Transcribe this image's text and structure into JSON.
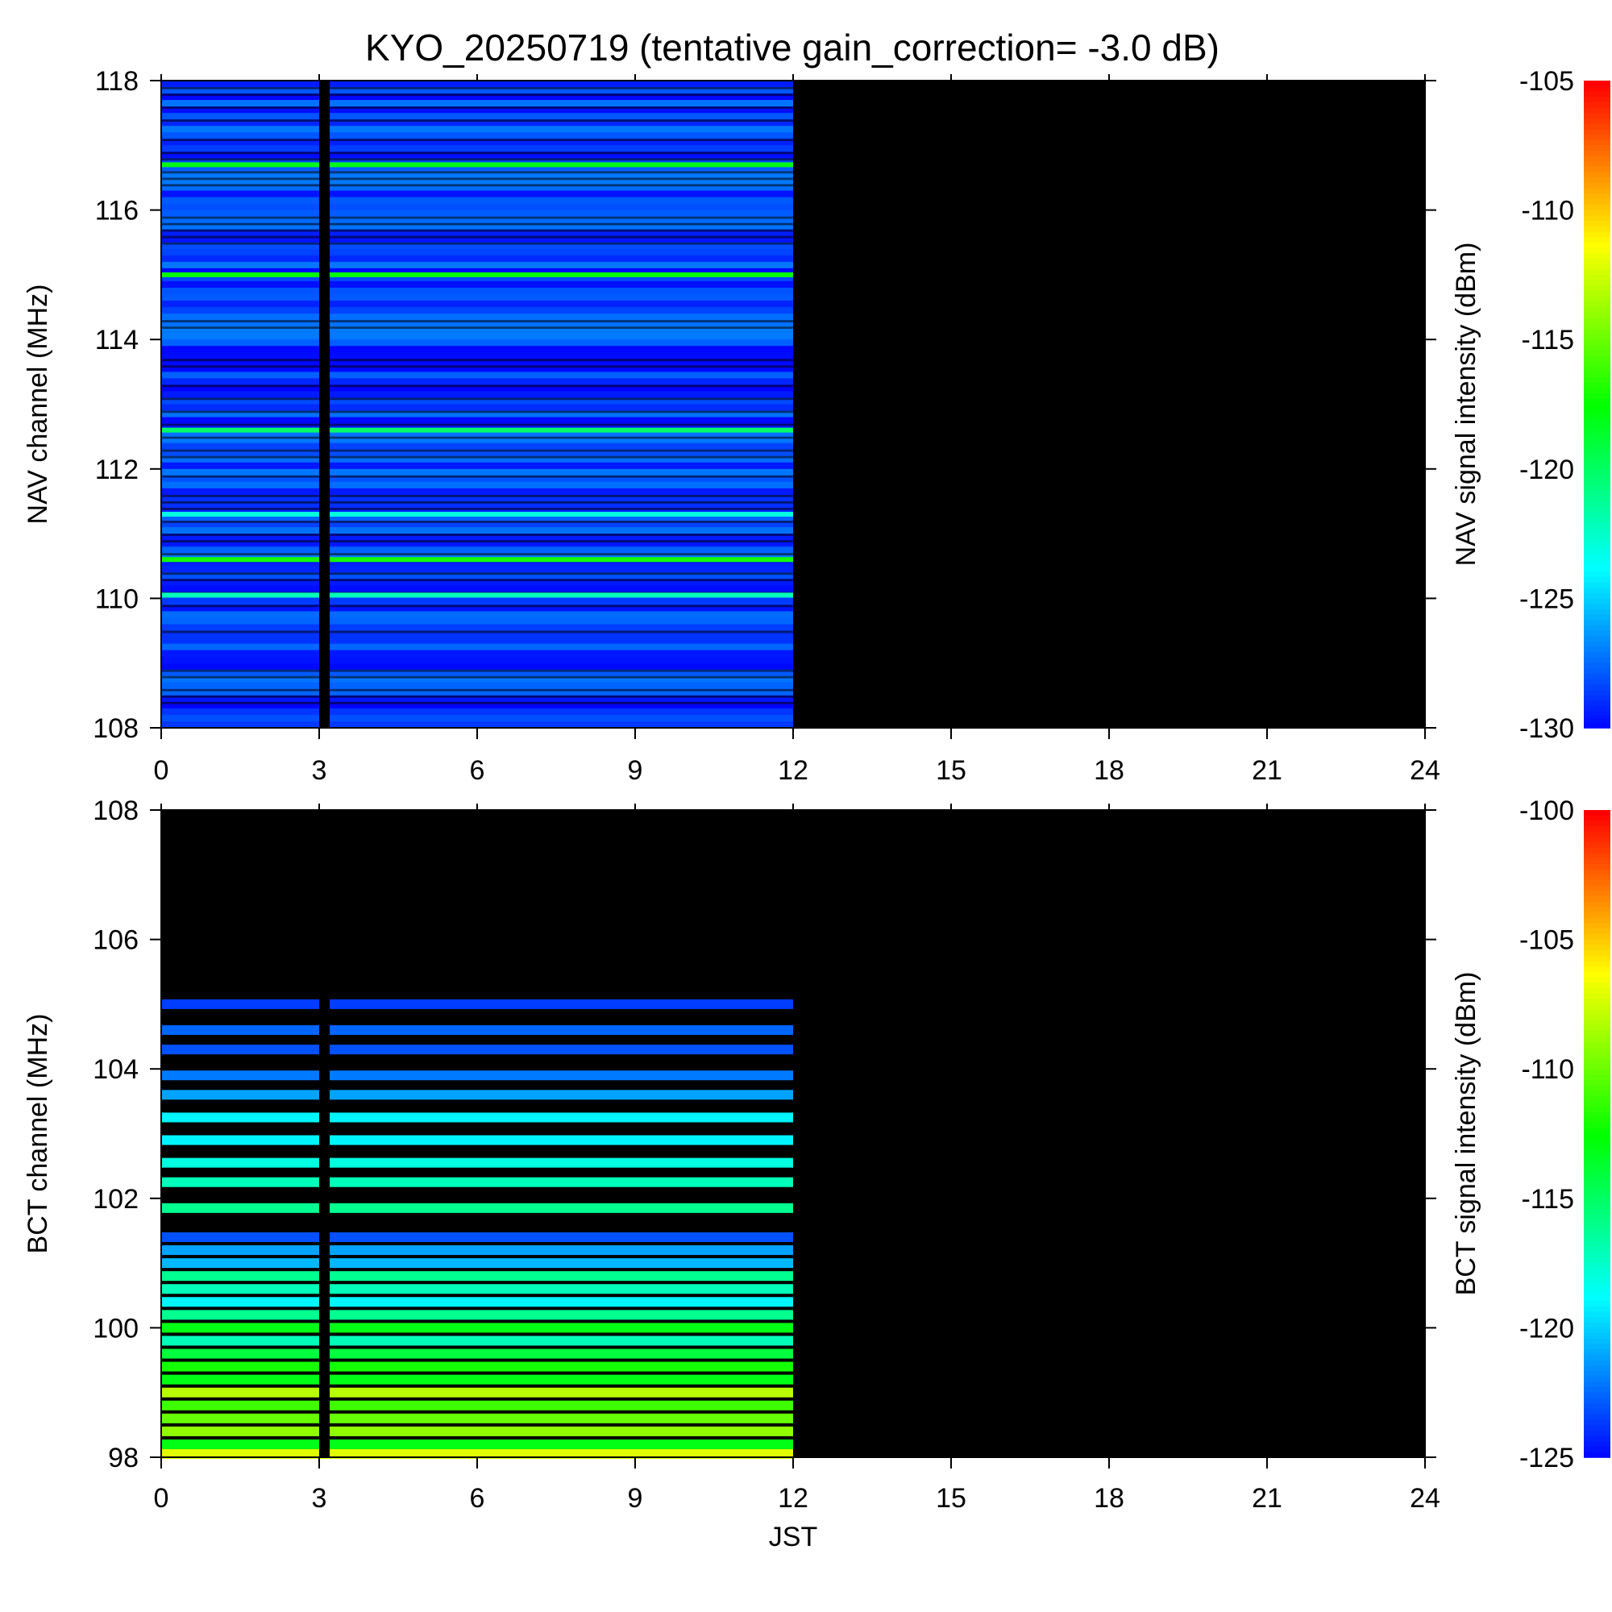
{
  "figure": {
    "title": "KYO_20250719 (tentative gain_correction= -3.0 dB)"
  },
  "chart_data": [
    {
      "id": "nav",
      "type": "heatmap",
      "xlabel": "",
      "ylabel": "NAV channel (MHz)",
      "colorbar_label": "NAV signal intensity (dBm)",
      "xlim": [
        0,
        24
      ],
      "ylim": [
        108,
        118
      ],
      "xticks": [
        0,
        3,
        6,
        9,
        12,
        15,
        18,
        21,
        24
      ],
      "yticks": [
        108,
        110,
        112,
        114,
        116,
        118
      ],
      "colorbar_range": [
        -130,
        -105
      ],
      "colorbar_ticks": [
        -105,
        -110,
        -115,
        -120,
        -125,
        -130
      ],
      "colorscale": [
        "#0000ff",
        "#00ffff",
        "#00ff00",
        "#ffff00",
        "#ff0000"
      ],
      "no_data_color": "#000000",
      "data_time_range": [
        0,
        12
      ],
      "gaps": [
        [
          3.0,
          3.2
        ]
      ],
      "background_level_dBm": -128.5,
      "strong_channels": [
        {
          "freq_mhz": 116.7,
          "level_dBm": -118
        },
        {
          "freq_mhz": 115.0,
          "level_dBm": -117.5
        },
        {
          "freq_mhz": 112.6,
          "level_dBm": -120
        },
        {
          "freq_mhz": 111.3,
          "level_dBm": -123
        },
        {
          "freq_mhz": 110.6,
          "level_dBm": -117
        },
        {
          "freq_mhz": 110.05,
          "level_dBm": -122
        }
      ]
    },
    {
      "id": "bct",
      "type": "heatmap",
      "xlabel": "JST",
      "ylabel": "BCT channel (MHz)",
      "colorbar_label": "BCT signal intensity (dBm)",
      "xlim": [
        0,
        24
      ],
      "ylim": [
        98,
        108
      ],
      "xticks": [
        0,
        3,
        6,
        9,
        12,
        15,
        18,
        21,
        24
      ],
      "yticks": [
        98,
        100,
        102,
        104,
        106,
        108
      ],
      "colorbar_range": [
        -125,
        -100
      ],
      "colorbar_ticks": [
        -100,
        -105,
        -110,
        -115,
        -120,
        -125
      ],
      "colorscale": [
        "#0000ff",
        "#00ffff",
        "#00ff00",
        "#ffff00",
        "#ff0000"
      ],
      "no_data_color": "#000000",
      "data_time_range": [
        0,
        12
      ],
      "gaps": [
        [
          3.0,
          3.2
        ]
      ],
      "channels": [
        {
          "freq_mhz": 105.0,
          "level_dBm": -123.5
        },
        {
          "freq_mhz": 104.6,
          "level_dBm": -122.5
        },
        {
          "freq_mhz": 104.3,
          "level_dBm": -123
        },
        {
          "freq_mhz": 103.9,
          "level_dBm": -122
        },
        {
          "freq_mhz": 103.6,
          "level_dBm": -121
        },
        {
          "freq_mhz": 103.25,
          "level_dBm": -119
        },
        {
          "freq_mhz": 102.9,
          "level_dBm": -119
        },
        {
          "freq_mhz": 102.55,
          "level_dBm": -118
        },
        {
          "freq_mhz": 102.25,
          "level_dBm": -117
        },
        {
          "freq_mhz": 101.85,
          "level_dBm": -116
        },
        {
          "freq_mhz": 101.4,
          "level_dBm": -123
        },
        {
          "freq_mhz": 101.2,
          "level_dBm": -121
        },
        {
          "freq_mhz": 101.0,
          "level_dBm": -120.5
        },
        {
          "freq_mhz": 100.8,
          "level_dBm": -116
        },
        {
          "freq_mhz": 100.6,
          "level_dBm": -117
        },
        {
          "freq_mhz": 100.4,
          "level_dBm": -119
        },
        {
          "freq_mhz": 100.2,
          "level_dBm": -116
        },
        {
          "freq_mhz": 100.0,
          "level_dBm": -113
        },
        {
          "freq_mhz": 99.8,
          "level_dBm": -117
        },
        {
          "freq_mhz": 99.6,
          "level_dBm": -114
        },
        {
          "freq_mhz": 99.4,
          "level_dBm": -112
        },
        {
          "freq_mhz": 99.2,
          "level_dBm": -113
        },
        {
          "freq_mhz": 99.0,
          "level_dBm": -108
        },
        {
          "freq_mhz": 98.8,
          "level_dBm": -111
        },
        {
          "freq_mhz": 98.6,
          "level_dBm": -110
        },
        {
          "freq_mhz": 98.4,
          "level_dBm": -109
        },
        {
          "freq_mhz": 98.2,
          "level_dBm": -113
        },
        {
          "freq_mhz": 98.05,
          "level_dBm": -107
        }
      ]
    }
  ]
}
